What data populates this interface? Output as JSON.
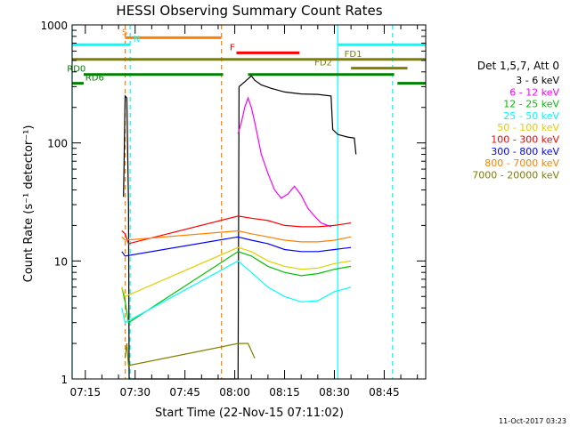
{
  "chart_data": {
    "type": "line",
    "title": "HESSI Observing Summary Count Rates",
    "xlabel": "Start Time (22-Nov-15 07:11:02)",
    "ylabel": "Count Rate (s⁻¹ detector⁻¹)",
    "x_ticks": [
      "07:15",
      "07:30",
      "07:45",
      "08:00",
      "08:15",
      "08:30",
      "08:45"
    ],
    "x_tick_minutes": [
      15,
      30,
      45,
      60,
      75,
      90,
      105
    ],
    "xlim_minutes": [
      11.03,
      117.5
    ],
    "y_scale": "log",
    "ylim": [
      1,
      1000
    ],
    "y_ticks": [
      1,
      10,
      100,
      1000
    ],
    "y_tick_labels": [
      "1",
      "10",
      "100",
      "1000"
    ],
    "timestamp": "11-Oct-2017 03:23",
    "legend_title": "Det 1,5,7, Att 0",
    "legend_position": "right",
    "series": [
      {
        "name": "3 - 6 keV",
        "color": "#000000",
        "points": [
          [
            26.5,
            35
          ],
          [
            27.0,
            250
          ],
          [
            27.5,
            240
          ],
          [
            28.0,
            30
          ],
          [
            28.2,
            1
          ],
          [
            61,
            1
          ],
          [
            61.3,
            300
          ],
          [
            63,
            330
          ],
          [
            65,
            370
          ],
          [
            66,
            340
          ],
          [
            68,
            310
          ],
          [
            71,
            290
          ],
          [
            75,
            270
          ],
          [
            80,
            260
          ],
          [
            85,
            258
          ],
          [
            89,
            250
          ],
          [
            89.5,
            130
          ],
          [
            91,
            118
          ],
          [
            94,
            112
          ],
          [
            96,
            110
          ],
          [
            96.5,
            80
          ]
        ]
      },
      {
        "name": "6 - 12 keV",
        "color": "#ff00ff",
        "points": [
          [
            61,
            120
          ],
          [
            62,
            150
          ],
          [
            63,
            200
          ],
          [
            64,
            240
          ],
          [
            65,
            200
          ],
          [
            66,
            150
          ],
          [
            67,
            110
          ],
          [
            68,
            80
          ],
          [
            70,
            55
          ],
          [
            72,
            40
          ],
          [
            74,
            34
          ],
          [
            76,
            37
          ],
          [
            78,
            43
          ],
          [
            80,
            36
          ],
          [
            82,
            28
          ],
          [
            84,
            24
          ],
          [
            86,
            21
          ],
          [
            88,
            20
          ],
          [
            89,
            19.5
          ]
        ]
      },
      {
        "name": "12 - 25 keV",
        "color": "#00c000",
        "points": [
          [
            26,
            6
          ],
          [
            27,
            4.5
          ],
          [
            28,
            3
          ],
          [
            61,
            12
          ],
          [
            65,
            11
          ],
          [
            70,
            9
          ],
          [
            75,
            8
          ],
          [
            80,
            7.5
          ],
          [
            85,
            7.8
          ],
          [
            90,
            8.5
          ],
          [
            95,
            9
          ]
        ]
      },
      {
        "name": "25 - 50 keV",
        "color": "#00ffff",
        "points": [
          [
            26,
            4
          ],
          [
            27,
            3
          ],
          [
            61,
            10
          ],
          [
            65,
            8
          ],
          [
            70,
            6
          ],
          [
            75,
            5
          ],
          [
            80,
            4.5
          ],
          [
            85,
            4.6
          ],
          [
            90,
            5.5
          ],
          [
            95,
            6
          ]
        ]
      },
      {
        "name": "50 - 100 keV",
        "color": "#e0d000",
        "points": [
          [
            26,
            6
          ],
          [
            27,
            5
          ],
          [
            61,
            13
          ],
          [
            65,
            12
          ],
          [
            70,
            10
          ],
          [
            75,
            9
          ],
          [
            80,
            8.5
          ],
          [
            85,
            8.7
          ],
          [
            90,
            9.5
          ],
          [
            95,
            10
          ]
        ]
      },
      {
        "name": "100 - 300 keV",
        "color": "#ff0000",
        "points": [
          [
            26,
            18
          ],
          [
            27,
            17
          ],
          [
            28,
            14
          ],
          [
            61,
            24
          ],
          [
            65,
            23
          ],
          [
            70,
            22
          ],
          [
            75,
            20
          ],
          [
            80,
            19.5
          ],
          [
            85,
            19.5
          ],
          [
            90,
            20
          ],
          [
            95,
            21
          ]
        ]
      },
      {
        "name": "300 - 800 keV",
        "color": "#0000ff",
        "points": [
          [
            26,
            12
          ],
          [
            27,
            11
          ],
          [
            61,
            16
          ],
          [
            65,
            15
          ],
          [
            70,
            14
          ],
          [
            75,
            12.5
          ],
          [
            80,
            12
          ],
          [
            85,
            12
          ],
          [
            90,
            12.5
          ],
          [
            95,
            13
          ]
        ]
      },
      {
        "name": "800 - 7000 keV",
        "color": "#ff8000",
        "points": [
          [
            26,
            16
          ],
          [
            27,
            15
          ],
          [
            61,
            18
          ],
          [
            65,
            17
          ],
          [
            70,
            16
          ],
          [
            75,
            15
          ],
          [
            80,
            14.5
          ],
          [
            85,
            14.5
          ],
          [
            90,
            15
          ],
          [
            95,
            16
          ]
        ]
      },
      {
        "name": "7000 - 20000 keV",
        "color": "#808000",
        "points": [
          [
            27,
            1.5
          ],
          [
            27.5,
            2
          ],
          [
            28,
            1.3
          ],
          [
            61,
            2
          ],
          [
            64,
            2
          ],
          [
            66,
            1.5
          ]
        ]
      }
    ],
    "obs_bars": [
      {
        "label": "S",
        "color": "#ff8000",
        "x_start": 27,
        "x_end": 56,
        "y_value": 780,
        "label_x": 26.0
      },
      {
        "label": "N",
        "color": "#00ffff",
        "x_start": 11.03,
        "x_end": 28.5,
        "y_value": 680,
        "label_x": 29.5
      },
      {
        "label": "N",
        "color": "#00ffff",
        "x_start": 91,
        "x_end": 117.5,
        "y_value": 680,
        "label_x": null
      },
      {
        "label": "F",
        "color": "#ff0000",
        "x_start": 60.5,
        "x_end": 79.5,
        "y_value": 580,
        "label_x": 58.5
      },
      {
        "label": "FD1",
        "color": "#808000",
        "x_start": 11.03,
        "x_end": 117.5,
        "y_value": 510,
        "label_x": 93.0
      },
      {
        "label": "FD2",
        "color": "#808000",
        "x_start": 95,
        "x_end": 112,
        "y_value": 430,
        "label_x": 84.0
      },
      {
        "label": "RD0",
        "color": "#008000",
        "x_start": 14.5,
        "x_end": 56.5,
        "y_value": 380,
        "label_x": 9.5
      },
      {
        "label": "RD0",
        "color": "#008000",
        "x_start": 64,
        "x_end": 108,
        "y_value": 380,
        "label_x": null
      },
      {
        "label": "RD6",
        "color": "#008000",
        "x_start": 11.03,
        "x_end": 14.5,
        "y_value": 320,
        "label_x": 15.0
      },
      {
        "label": "RD6",
        "color": "#008000",
        "x_start": 109,
        "x_end": 117.5,
        "y_value": 320,
        "label_x": null
      }
    ],
    "vertical_markers": [
      {
        "color": "#00ffff",
        "x": 11.03,
        "style": "solid"
      },
      {
        "color": "#00ffff",
        "x": 28.5,
        "style": "dashed"
      },
      {
        "color": "#ff8000",
        "x": 27.0,
        "style": "dashed"
      },
      {
        "color": "#ff8000",
        "x": 56.0,
        "style": "dashed"
      },
      {
        "color": "#00ffff",
        "x": 91.0,
        "style": "solid"
      },
      {
        "color": "#00ffff",
        "x": 107.5,
        "style": "dashed"
      }
    ]
  }
}
